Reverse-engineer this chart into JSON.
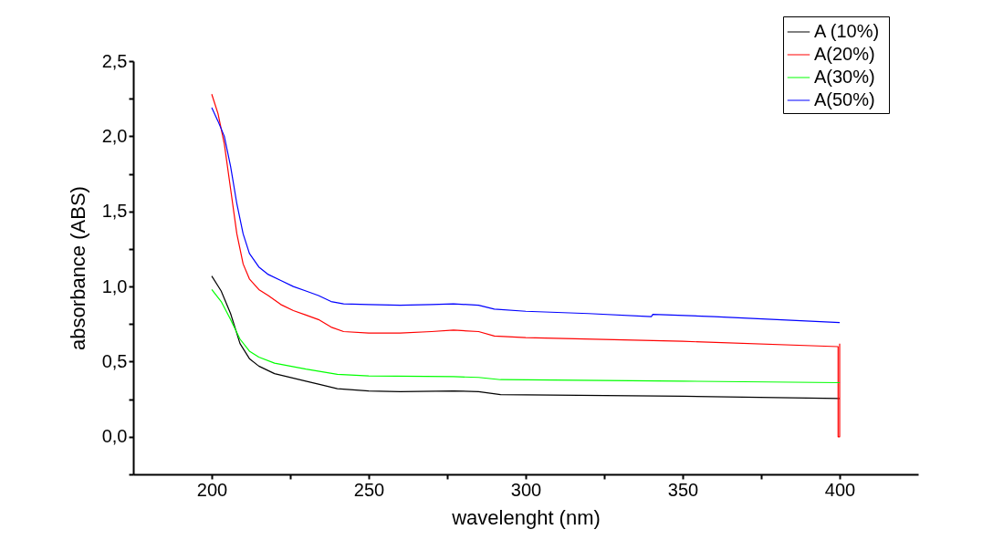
{
  "chart_data": {
    "type": "line",
    "xlabel": "wavelenght (nm)",
    "ylabel": "absorbance (ABS)",
    "xlim": [
      175,
      425
    ],
    "ylim": [
      -0.25,
      2.5
    ],
    "xticks": [
      200,
      {
        "value": 225,
        "label": null
      },
      250,
      {
        "value": 275,
        "label": null
      },
      300,
      {
        "value": 325,
        "label": null
      },
      350,
      {
        "value": 375,
        "label": null
      },
      400
    ],
    "yticks": [
      {
        "value": -0.25,
        "label": null
      },
      {
        "value": 0,
        "label": "0,0"
      },
      {
        "value": 0.25,
        "label": null
      },
      {
        "value": 0.5,
        "label": "0,5"
      },
      {
        "value": 0.75,
        "label": null
      },
      {
        "value": 1,
        "label": "1,0"
      },
      {
        "value": 1.25,
        "label": null
      },
      {
        "value": 1.5,
        "label": "1,5"
      },
      {
        "value": 1.75,
        "label": null
      },
      {
        "value": 2,
        "label": "2,0"
      },
      {
        "value": 2.25,
        "label": null
      },
      {
        "value": 2.5,
        "label": "2,5"
      }
    ],
    "grid": false,
    "legend": "top right",
    "marker": "none",
    "line_style": "solid",
    "series": [
      {
        "name": "A  (10%)",
        "color": "#000000",
        "x": [
          200,
          203,
          206,
          209,
          212,
          215,
          220,
          230,
          234,
          240,
          250,
          260,
          277,
          285,
          292,
          350,
          400
        ],
        "values": [
          1.07,
          0.97,
          0.82,
          0.62,
          0.52,
          0.47,
          0.42,
          0.37,
          0.35,
          0.32,
          0.305,
          0.3,
          0.305,
          0.3,
          0.28,
          0.27,
          0.255
        ]
      },
      {
        "name": "A(20%)",
        "color": "#ff0000",
        "x": [
          200,
          202,
          204,
          206,
          208,
          210,
          212,
          215,
          218,
          222,
          226,
          230,
          234,
          238,
          242,
          250,
          260,
          270,
          277,
          285,
          290,
          300,
          350,
          399.5,
          399.5,
          400,
          400
        ],
        "values": [
          2.28,
          2.15,
          1.95,
          1.65,
          1.35,
          1.15,
          1.05,
          0.98,
          0.94,
          0.88,
          0.84,
          0.81,
          0.78,
          0.73,
          0.7,
          0.69,
          0.69,
          0.7,
          0.71,
          0.7,
          0.67,
          0.66,
          0.635,
          0.6,
          0,
          0,
          0.62
        ]
      },
      {
        "name": "A(30%)",
        "color": "#00ff00",
        "x": [
          200,
          203,
          206,
          209,
          212,
          215,
          220,
          230,
          240,
          250,
          277,
          285,
          292,
          350,
          400
        ],
        "values": [
          0.98,
          0.9,
          0.78,
          0.65,
          0.57,
          0.53,
          0.49,
          0.45,
          0.415,
          0.405,
          0.4,
          0.395,
          0.38,
          0.37,
          0.36
        ]
      },
      {
        "name": "A(50%)",
        "color": "#0000ff",
        "x": [
          200,
          202,
          204,
          206,
          208,
          210,
          212,
          215,
          218,
          222,
          226,
          230,
          234,
          238,
          242,
          250,
          260,
          270,
          277,
          285,
          290,
          300,
          320,
          340,
          340.5,
          360,
          380,
          400
        ],
        "values": [
          2.19,
          2.1,
          2.0,
          1.8,
          1.55,
          1.35,
          1.22,
          1.13,
          1.08,
          1.04,
          1.0,
          0.97,
          0.94,
          0.9,
          0.885,
          0.88,
          0.875,
          0.88,
          0.885,
          0.875,
          0.85,
          0.835,
          0.82,
          0.8,
          0.815,
          0.8,
          0.78,
          0.76
        ]
      }
    ]
  }
}
